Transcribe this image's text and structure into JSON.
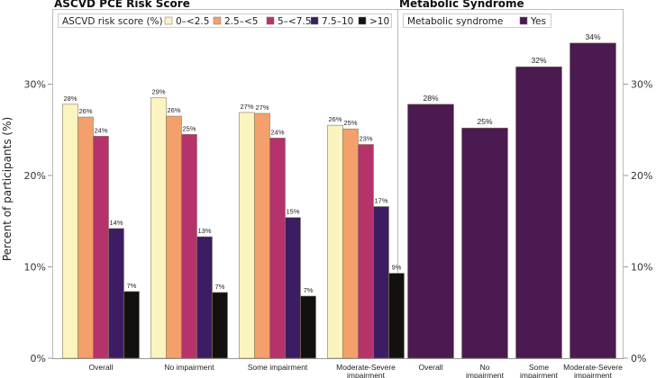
{
  "chart_data": [
    {
      "type": "bar",
      "title": "ASCVD PCE Risk Score",
      "ylabel": "Percent of participants (%)",
      "ylim": [
        0,
        38
      ],
      "yticks": [
        "0%",
        "10%",
        "20%",
        "30%"
      ],
      "ytick_values": [
        0,
        10,
        20,
        30
      ],
      "legend_title": "ASCVD risk score (%)",
      "legend_position": "top",
      "categories": [
        "Overall",
        "No impairment",
        "Some impairment",
        "Moderate-Severe impairment"
      ],
      "category_lines": [
        [
          "Overall"
        ],
        [
          "No impairment"
        ],
        [
          "Some impairment"
        ],
        [
          "Moderate-Severe",
          "impairment"
        ]
      ],
      "series": [
        {
          "name": "0–<2.5",
          "color": "#fbf4bf",
          "values": [
            27.8,
            28.5,
            26.9,
            25.5
          ],
          "labels": [
            "28%",
            "29%",
            "27%",
            "26%"
          ]
        },
        {
          "name": "2.5–<5",
          "color": "#f4a06b",
          "values": [
            26.4,
            26.5,
            26.8,
            25.1
          ],
          "labels": [
            "26%",
            "26%",
            "27%",
            "25%"
          ]
        },
        {
          "name": "5–<7.5",
          "color": "#b6326b",
          "values": [
            24.3,
            24.5,
            24.1,
            23.4
          ],
          "labels": [
            "24%",
            "25%",
            "24%",
            "23%"
          ]
        },
        {
          "name": "7.5–10",
          "color": "#3c1d63",
          "values": [
            14.2,
            13.3,
            15.4,
            16.6
          ],
          "labels": [
            "14%",
            "13%",
            "15%",
            "17%"
          ]
        },
        {
          "name": ">10",
          "color": "#121110",
          "values": [
            7.3,
            7.2,
            6.8,
            9.3
          ],
          "labels": [
            "7%",
            "7%",
            "7%",
            "9%"
          ]
        }
      ]
    },
    {
      "type": "bar",
      "title": "Metabolic Syndrome",
      "ylim": [
        0,
        38
      ],
      "yticks": [
        "0%",
        "10%",
        "20%",
        "30%"
      ],
      "ytick_values": [
        0,
        10,
        20,
        30
      ],
      "legend_title": "Metabolic syndrome",
      "legend_position": "top",
      "categories": [
        "Overall",
        "No impairment",
        "Some impairment",
        "Moderate-Severe impairment"
      ],
      "category_lines": [
        [
          "Overall"
        ],
        [
          "No",
          "impairment"
        ],
        [
          "Some",
          "impairment"
        ],
        [
          "Moderate-Severe",
          "impairment"
        ]
      ],
      "series": [
        {
          "name": "Yes",
          "color": "#4a1a50",
          "values": [
            27.8,
            25.2,
            31.9,
            34.5
          ],
          "labels": [
            "28%",
            "25%",
            "32%",
            "34%"
          ]
        }
      ]
    }
  ]
}
